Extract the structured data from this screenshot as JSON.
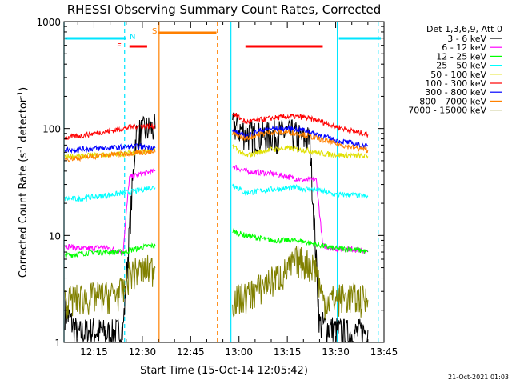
{
  "chart_data": {
    "type": "line",
    "title": "RHESSI Observing Summary Count Rates, Corrected",
    "xlabel": "Start Time (15-Oct-14 12:05:42)",
    "ylabel": "Corrected Count Rate (s⁻¹ detector⁻¹)",
    "ylabel_parts": [
      "Corrected Count Rate (s",
      "-1",
      " detector",
      "-1",
      ")"
    ],
    "y_scale": "log",
    "ylim": [
      1,
      1000
    ],
    "xlim_minutes_after_12_00": [
      5.7,
      105
    ],
    "x_ticks": [
      {
        "label": "12:15",
        "minute": 15
      },
      {
        "label": "12:30",
        "minute": 30
      },
      {
        "label": "12:45",
        "minute": 45
      },
      {
        "label": "13:00",
        "minute": 60
      },
      {
        "label": "13:15",
        "minute": 75
      },
      {
        "label": "13:30",
        "minute": 90
      },
      {
        "label": "13:45",
        "minute": 105
      }
    ],
    "y_ticks": [
      {
        "label": "1",
        "value": 1
      },
      {
        "label": "10",
        "value": 10
      },
      {
        "label": "100",
        "value": 100
      },
      {
        "label": "1000",
        "value": 1000
      }
    ],
    "legend_header": "Det 1,3,6,9, Att 0",
    "legend_placement": "right",
    "data_gap_minutes": [
      35,
      58
    ],
    "series": [
      {
        "name": "3 - 6 keV",
        "color": "#000000",
        "x": [
          6,
          10,
          15,
          20,
          24,
          28,
          30,
          32,
          34,
          58,
          60,
          63,
          67,
          72,
          76,
          80,
          82,
          85,
          90,
          95,
          100
        ],
        "y": [
          2,
          1.2,
          1.3,
          1.2,
          1.3,
          90,
          95,
          100,
          100,
          110,
          100,
          90,
          85,
          90,
          92,
          80,
          80,
          1.5,
          1.3,
          1.2,
          1.3
        ]
      },
      {
        "name": "6 - 12 keV",
        "color": "#ff00ff",
        "x": [
          6,
          12,
          18,
          24,
          26,
          30,
          34,
          58,
          62,
          70,
          80,
          84,
          86,
          90,
          95,
          100
        ],
        "y": [
          8,
          7.5,
          7.8,
          7,
          35,
          38,
          40,
          45,
          40,
          38,
          33,
          33,
          8,
          7.5,
          7.5,
          7
        ]
      },
      {
        "name": "12 - 25 keV",
        "color": "#00ff00",
        "x": [
          6,
          15,
          24,
          28,
          32,
          34,
          58,
          62,
          70,
          78,
          86,
          90,
          95,
          100
        ],
        "y": [
          6.5,
          7,
          7,
          7.5,
          8,
          8,
          11,
          10,
          9,
          9,
          8,
          7.5,
          7.5,
          7
        ]
      },
      {
        "name": "25 - 50 keV",
        "color": "#00ffff",
        "x": [
          6,
          10,
          15,
          20,
          24,
          28,
          32,
          34,
          58,
          62,
          70,
          78,
          86,
          90,
          95,
          100
        ],
        "y": [
          22,
          22,
          23,
          24,
          25,
          26,
          28,
          28,
          30,
          25,
          27,
          28,
          26,
          24,
          24,
          23
        ]
      },
      {
        "name": "50 - 100 keV",
        "color": "#e0e000",
        "x": [
          6,
          10,
          15,
          20,
          24,
          28,
          32,
          34,
          58,
          62,
          66,
          70,
          76,
          82,
          86,
          90,
          95,
          100
        ],
        "y": [
          55,
          55,
          56,
          57,
          58,
          60,
          62,
          62,
          70,
          55,
          60,
          64,
          65,
          62,
          58,
          57,
          56,
          55
        ]
      },
      {
        "name": "100 - 300 keV",
        "color": "#ff0000",
        "x": [
          6,
          10,
          15,
          20,
          24,
          28,
          32,
          34,
          58,
          62,
          66,
          70,
          76,
          80,
          86,
          90,
          95,
          100
        ],
        "y": [
          82,
          85,
          90,
          95,
          100,
          105,
          105,
          105,
          140,
          115,
          120,
          125,
          130,
          128,
          115,
          105,
          95,
          88
        ]
      },
      {
        "name": "300 - 800 keV",
        "color": "#0000ff",
        "x": [
          6,
          10,
          15,
          20,
          24,
          28,
          32,
          34,
          58,
          62,
          66,
          70,
          76,
          80,
          86,
          90,
          95,
          100
        ],
        "y": [
          63,
          64,
          65,
          66,
          67,
          68,
          67,
          66,
          95,
          85,
          95,
          100,
          100,
          97,
          85,
          78,
          73,
          68
        ]
      },
      {
        "name": "800 - 7000 keV",
        "color": "#ff8000",
        "x": [
          6,
          10,
          15,
          20,
          24,
          28,
          32,
          34,
          58,
          62,
          66,
          70,
          76,
          80,
          86,
          90,
          95,
          100
        ],
        "y": [
          52,
          53,
          55,
          57,
          58,
          60,
          60,
          60,
          90,
          80,
          88,
          92,
          92,
          88,
          78,
          72,
          67,
          63
        ]
      },
      {
        "name": "7000 - 15000 keV",
        "color": "#808000",
        "x": [
          6,
          10,
          15,
          20,
          24,
          26,
          30,
          34,
          58,
          62,
          68,
          74,
          78,
          82,
          84,
          86,
          90,
          95,
          100
        ],
        "y": [
          2.5,
          2.6,
          2.7,
          2.8,
          3,
          4.5,
          4.8,
          5,
          2.5,
          2.7,
          3.5,
          4.5,
          6,
          5.5,
          5,
          2.5,
          2.6,
          2.7,
          2.5
        ]
      }
    ],
    "annotations": [
      {
        "label": "N",
        "color": "#00e5ff",
        "kind": "attenuator/night band",
        "x_range": [
          6,
          25
        ]
      },
      {
        "label": "N",
        "color": "#00e5ff",
        "kind": "attenuator/night band",
        "x_range": [
          91,
          104
        ]
      },
      {
        "label": "F",
        "color": "#ff0000",
        "kind": "flare flag",
        "x_range": [
          26,
          31.5
        ]
      },
      {
        "label": "F",
        "color": "#ff0000",
        "kind": "flare flag",
        "x_range": [
          62,
          86
        ]
      },
      {
        "label": "S",
        "color": "#ff8000",
        "kind": "SAA",
        "x_range": [
          35,
          53
        ]
      }
    ],
    "vertical_markers": [
      {
        "minute": 5.7,
        "color": "#00e5ff",
        "style": "solid"
      },
      {
        "minute": 24.5,
        "color": "#00e5ff",
        "style": "dashed"
      },
      {
        "minute": 35.2,
        "color": "#ff8000",
        "style": "solid"
      },
      {
        "minute": 53.3,
        "color": "#ff8000",
        "style": "dashed"
      },
      {
        "minute": 57.5,
        "color": "#00e5ff",
        "style": "solid"
      },
      {
        "minute": 90.5,
        "color": "#00e5ff",
        "style": "solid"
      },
      {
        "minute": 103.2,
        "color": "#00e5ff",
        "style": "dashed"
      }
    ],
    "footer_date": "21-Oct-2021 01:03"
  }
}
